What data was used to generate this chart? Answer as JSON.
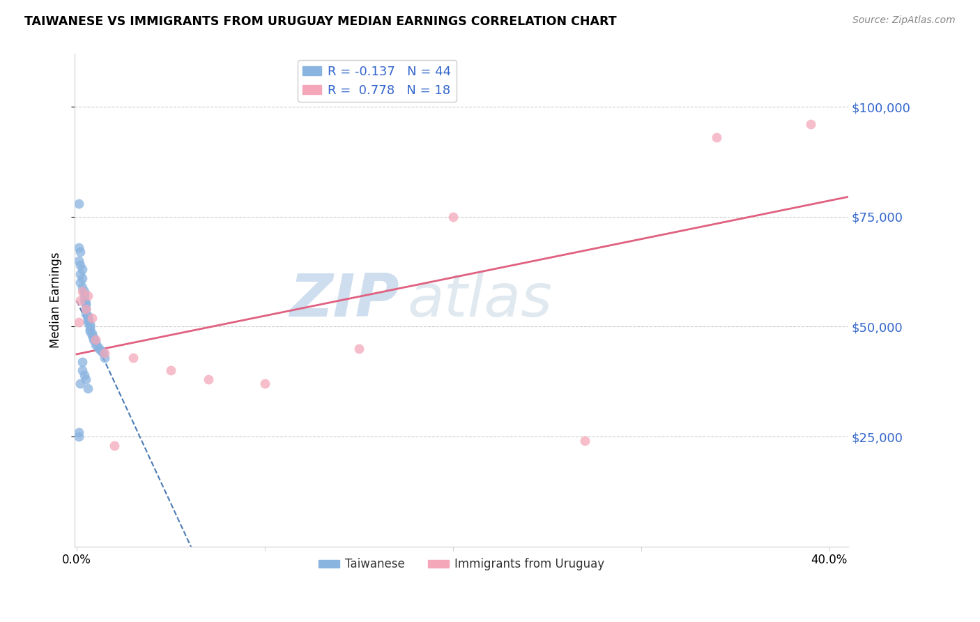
{
  "title": "TAIWANESE VS IMMIGRANTS FROM URUGUAY MEDIAN EARNINGS CORRELATION CHART",
  "source": "Source: ZipAtlas.com",
  "ylabel": "Median Earnings",
  "ytick_labels": [
    "$25,000",
    "$50,000",
    "$75,000",
    "$100,000"
  ],
  "ytick_values": [
    25000,
    50000,
    75000,
    100000
  ],
  "ymin": 0,
  "ymax": 112000,
  "xmin": -0.001,
  "xmax": 0.41,
  "legend_label1": "Taiwanese",
  "legend_label2": "Immigrants from Uruguay",
  "legend_R1": "R = -0.137",
  "legend_N1": "N = 44",
  "legend_R2": "R =  0.778",
  "legend_N2": "N = 18",
  "watermark_zip": "ZIP",
  "watermark_atlas": "atlas",
  "color_blue": "#8ab4e0",
  "color_pink": "#f4a7b9",
  "color_trendline_blue": "#4a7ab5",
  "color_trendline_pink": "#e06080",
  "taiwanese_x": [
    0.001,
    0.001,
    0.001,
    0.002,
    0.002,
    0.002,
    0.002,
    0.003,
    0.003,
    0.003,
    0.004,
    0.004,
    0.004,
    0.005,
    0.005,
    0.005,
    0.005,
    0.006,
    0.006,
    0.006,
    0.006,
    0.007,
    0.007,
    0.007,
    0.007,
    0.008,
    0.008,
    0.009,
    0.009,
    0.01,
    0.01,
    0.011,
    0.012,
    0.013,
    0.014,
    0.015,
    0.001,
    0.001,
    0.002,
    0.003,
    0.003,
    0.004,
    0.005,
    0.006
  ],
  "taiwanese_y": [
    78000,
    68000,
    65000,
    67000,
    64000,
    62000,
    60000,
    63000,
    61000,
    59000,
    58000,
    57000,
    56000,
    55500,
    55000,
    54000,
    53000,
    52500,
    52000,
    51500,
    51000,
    50500,
    50000,
    49500,
    49000,
    48500,
    48000,
    47500,
    47000,
    46500,
    46000,
    45500,
    45000,
    44500,
    44000,
    43000,
    26000,
    25000,
    37000,
    42000,
    40000,
    39000,
    38000,
    36000
  ],
  "uruguay_x": [
    0.001,
    0.002,
    0.003,
    0.005,
    0.006,
    0.008,
    0.01,
    0.015,
    0.02,
    0.03,
    0.05,
    0.07,
    0.1,
    0.15,
    0.2,
    0.27,
    0.34,
    0.39
  ],
  "uruguay_y": [
    51000,
    56000,
    58000,
    54000,
    57000,
    52000,
    47000,
    44000,
    23000,
    43000,
    40000,
    38000,
    37000,
    45000,
    75000,
    24000,
    93000,
    96000
  ]
}
